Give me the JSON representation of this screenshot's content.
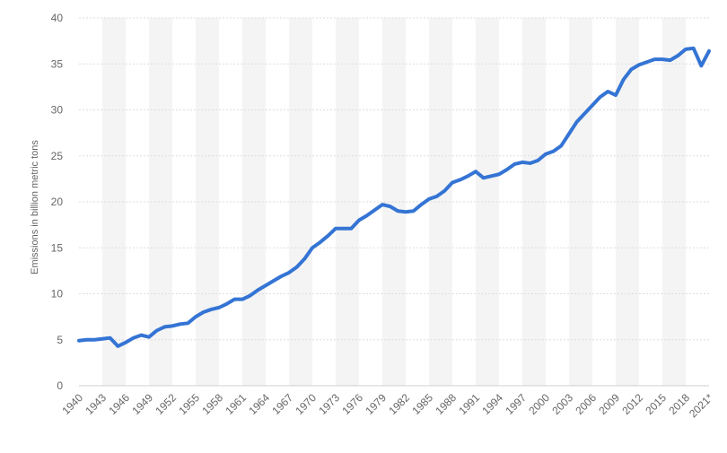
{
  "chart_data": {
    "type": "line",
    "title": "",
    "xlabel": "",
    "ylabel": "Emissions in billion metric tons",
    "ylim": [
      0,
      40
    ],
    "yticks": [
      0,
      5,
      10,
      15,
      20,
      25,
      30,
      35,
      40
    ],
    "xlim": [
      1940,
      2021
    ],
    "xtick_labels": [
      "1940",
      "1943",
      "1946",
      "1949",
      "1952",
      "1955",
      "1958",
      "1961",
      "1964",
      "1967",
      "1970",
      "1973",
      "1976",
      "1979",
      "1982",
      "1985",
      "1988",
      "1991",
      "1994",
      "1997",
      "2000",
      "2003",
      "2006",
      "2009",
      "2012",
      "2015",
      "2018",
      "2021*"
    ],
    "grid": true,
    "legend": "none",
    "line_color": "#3474d4",
    "series": [
      {
        "x": [
          1940,
          1941,
          1942,
          1943,
          1944,
          1945,
          1946,
          1947,
          1948,
          1949,
          1950,
          1951,
          1952,
          1953,
          1954,
          1955,
          1956,
          1957,
          1958,
          1959,
          1960,
          1961,
          1962,
          1963,
          1964,
          1965,
          1966,
          1967,
          1968,
          1969,
          1970,
          1971,
          1972,
          1973,
          1974,
          1975,
          1976,
          1977,
          1978,
          1979,
          1980,
          1981,
          1982,
          1983,
          1984,
          1985,
          1986,
          1987,
          1988,
          1989,
          1990,
          1991,
          1992,
          1993,
          1994,
          1995,
          1996,
          1997,
          1998,
          1999,
          2000,
          2001,
          2002,
          2003,
          2004,
          2005,
          2006,
          2007,
          2008,
          2009,
          2010,
          2011,
          2012,
          2013,
          2014,
          2015,
          2016,
          2017,
          2018,
          2019,
          2020,
          2021
        ],
        "values": [
          4.9,
          5.0,
          5.0,
          5.1,
          5.2,
          4.3,
          4.7,
          5.2,
          5.5,
          5.3,
          6.0,
          6.4,
          6.5,
          6.7,
          6.8,
          7.5,
          8.0,
          8.3,
          8.5,
          8.9,
          9.4,
          9.4,
          9.8,
          10.4,
          10.9,
          11.4,
          11.9,
          12.3,
          12.9,
          13.8,
          15.0,
          15.6,
          16.3,
          17.1,
          17.1,
          17.1,
          18.0,
          18.5,
          19.1,
          19.7,
          19.5,
          19.0,
          18.9,
          19.0,
          19.7,
          20.3,
          20.6,
          21.2,
          22.1,
          22.4,
          22.8,
          23.3,
          22.6,
          22.8,
          23.0,
          23.5,
          24.1,
          24.3,
          24.2,
          24.5,
          25.2,
          25.5,
          26.1,
          27.4,
          28.7,
          29.6,
          30.5,
          31.4,
          32.0,
          31.6,
          33.3,
          34.4,
          34.9,
          35.2,
          35.5,
          35.5,
          35.4,
          35.9,
          36.6,
          36.7,
          34.8,
          36.4
        ]
      }
    ]
  }
}
